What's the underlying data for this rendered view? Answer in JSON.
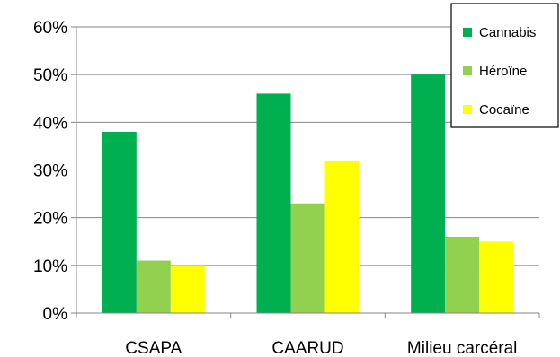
{
  "chart_data": {
    "type": "bar",
    "categories": [
      "CSAPA",
      "CAARUD",
      "Milieu carcéral"
    ],
    "series": [
      {
        "name": "Cannabis",
        "values": [
          38,
          46,
          50
        ],
        "color": "#00B050"
      },
      {
        "name": "Héroïne",
        "values": [
          11,
          23,
          16
        ],
        "color": "#92D050"
      },
      {
        "name": "Cocaïne",
        "values": [
          10,
          32,
          15
        ],
        "color": "#FFFF00"
      }
    ],
    "y_ticks": [
      "0%",
      "10%",
      "20%",
      "30%",
      "40%",
      "50%",
      "60%"
    ],
    "ylim": [
      0,
      60
    ],
    "grid": true,
    "legend_position": "top-right"
  }
}
